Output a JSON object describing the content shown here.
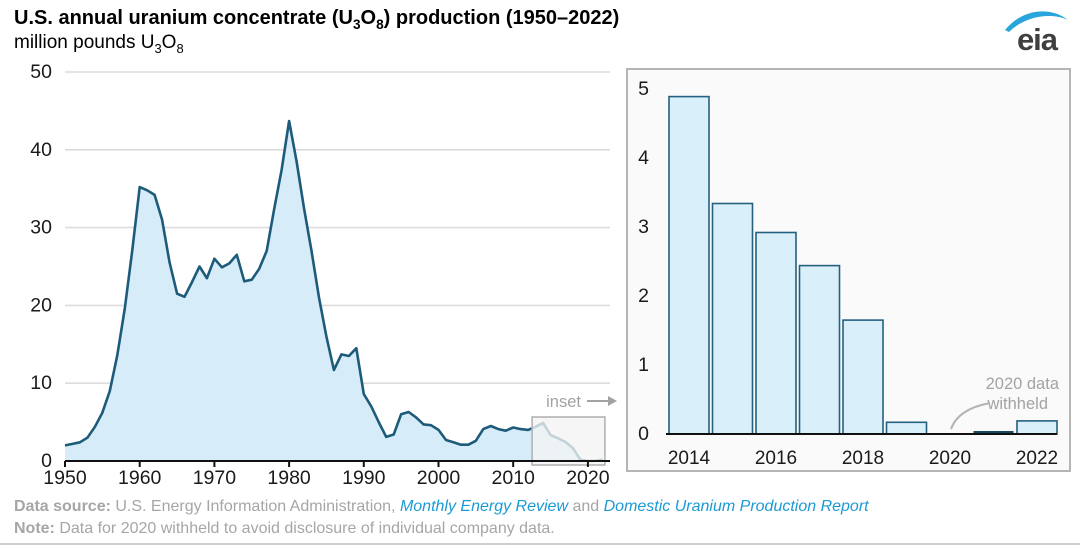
{
  "header": {
    "title": "U.S. annual uranium concentrate (U₃O₈) production (1950–2022)",
    "title_parts": {
      "pre": "U.S. annual uranium concentrate (U",
      "sub1": "3",
      "mid": "O",
      "sub2": "8",
      "post": ") production (1950–2022)"
    },
    "subtitle": "million pounds U₃O₈",
    "subtitle_parts": {
      "pre": "million pounds U",
      "sub1": "3",
      "mid": "O",
      "sub2": "8"
    },
    "logo_text": "eia"
  },
  "annotations": {
    "inset_label": "inset",
    "withheld_line1": "2020 data",
    "withheld_line2": "withheld"
  },
  "footer": {
    "source_label": "Data source:",
    "source_text": " U.S. Energy Information Administration, ",
    "source_link1": "Monthly Energy Review",
    "source_and": " and ",
    "source_link2": "Domestic Uranium Production Report",
    "note_label": "Note:",
    "note_text": " Data for 2020 withheld to avoid disclosure of individual company data."
  },
  "colors": {
    "line": "#1e5b7a",
    "area_fill": "#d6edf9",
    "bar_fill": "#d9effa",
    "bar_stroke": "#24607f",
    "gridline": "#dcdcdc",
    "axis": "#111111",
    "gray_text": "#a6a6a6",
    "link_blue": "#1b9ad6",
    "logo_swoosh": "#29a5dc",
    "inset_box_border": "#b3b3b3"
  },
  "chart_data": [
    {
      "type": "area",
      "name": "main-production-history",
      "title": "U.S. annual uranium concentrate (U₃O₈) production (1950–2022)",
      "ylabel": "million pounds U₃O₈",
      "xlabel": "",
      "x": [
        1950,
        1951,
        1952,
        1953,
        1954,
        1955,
        1956,
        1957,
        1958,
        1959,
        1960,
        1961,
        1962,
        1963,
        1964,
        1965,
        1966,
        1967,
        1968,
        1969,
        1970,
        1971,
        1972,
        1973,
        1974,
        1975,
        1976,
        1977,
        1978,
        1979,
        1980,
        1981,
        1982,
        1983,
        1984,
        1985,
        1986,
        1987,
        1988,
        1989,
        1990,
        1991,
        1992,
        1993,
        1994,
        1995,
        1996,
        1997,
        1998,
        1999,
        2000,
        2001,
        2002,
        2003,
        2004,
        2005,
        2006,
        2007,
        2008,
        2009,
        2010,
        2011,
        2012,
        2013,
        2014,
        2015,
        2016,
        2017,
        2018,
        2019,
        2020,
        2021,
        2022
      ],
      "values": [
        2.0,
        2.2,
        2.4,
        3.0,
        4.4,
        6.2,
        9.0,
        13.6,
        19.6,
        27.0,
        35.2,
        34.8,
        34.2,
        31.0,
        25.5,
        21.5,
        21.1,
        23.0,
        25.0,
        23.5,
        26.0,
        24.9,
        25.4,
        26.5,
        23.1,
        23.3,
        24.7,
        27.0,
        32.4,
        37.4,
        43.7,
        38.5,
        32.5,
        27.0,
        21.0,
        16.0,
        11.7,
        13.7,
        13.5,
        14.5,
        8.6,
        7.0,
        5.0,
        3.1,
        3.4,
        6.0,
        6.3,
        5.6,
        4.7,
        4.6,
        4.0,
        2.7,
        2.4,
        2.1,
        2.1,
        2.6,
        4.1,
        4.5,
        4.1,
        3.9,
        4.3,
        4.1,
        4.0,
        4.4,
        4.9,
        3.34,
        2.92,
        2.44,
        1.65,
        0.17,
        null,
        0.02,
        0.19
      ],
      "ylim": [
        0,
        50
      ],
      "yticks": [
        0,
        10,
        20,
        30,
        40,
        50
      ],
      "xticks": [
        1950,
        1960,
        1970,
        1980,
        1990,
        2000,
        2010,
        2020
      ],
      "grid": true,
      "legend": false,
      "inset_region": {
        "x0": 2014,
        "x1": 2022
      },
      "note": "2020 value withheld; shown as gap reaching ~0"
    },
    {
      "type": "bar",
      "name": "inset-2014-2022",
      "title": "",
      "categories": [
        2014,
        2015,
        2016,
        2017,
        2018,
        2019,
        2020,
        2021,
        2022
      ],
      "values": [
        4.89,
        3.34,
        2.92,
        2.44,
        1.65,
        0.17,
        null,
        0.02,
        0.19
      ],
      "ylim": [
        0,
        5
      ],
      "yticks": [
        0,
        1,
        2,
        3,
        4,
        5
      ],
      "xticks": [
        2014,
        2016,
        2018,
        2020,
        2022
      ],
      "grid": false,
      "legend": false,
      "annotation": "2020 data withheld"
    }
  ]
}
